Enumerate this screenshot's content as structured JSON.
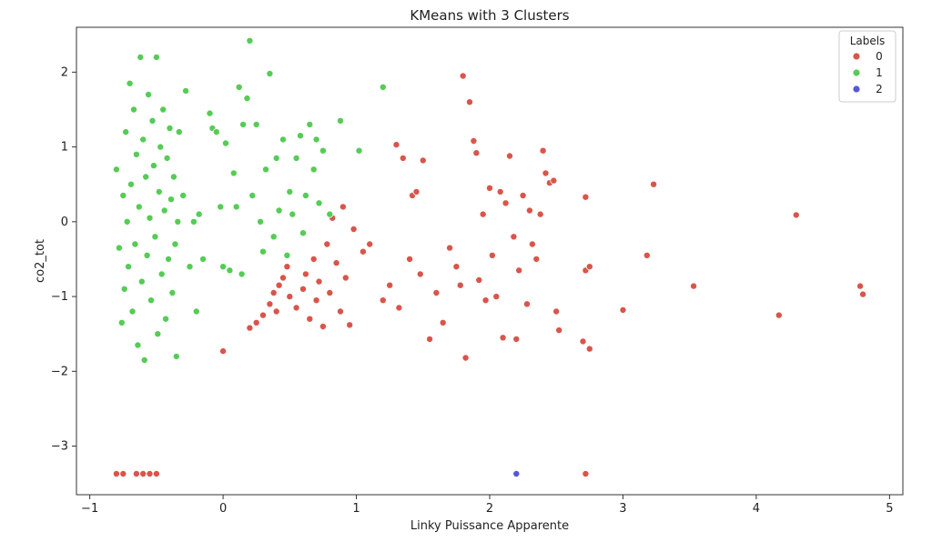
{
  "chart_data": {
    "type": "scatter",
    "title": "KMeans with 3 Clusters",
    "xlabel": "Linky Puissance Apparente",
    "ylabel": "co2_tot",
    "xlim": [
      -1.1,
      5.1
    ],
    "ylim": [
      -3.65,
      2.6
    ],
    "xticks": [
      -1,
      0,
      1,
      2,
      3,
      4,
      5
    ],
    "xtick_labels": [
      "−1",
      "0",
      "1",
      "2",
      "3",
      "4",
      "5"
    ],
    "yticks": [
      -3,
      -2,
      -1,
      0,
      1,
      2
    ],
    "ytick_labels": [
      "−3",
      "−2",
      "−1",
      "0",
      "1",
      "2"
    ],
    "grid": false,
    "legend": {
      "title": "Labels",
      "position": "top-right",
      "labels": [
        "0",
        "1",
        "2"
      ]
    },
    "series": [
      {
        "name": "0",
        "color": "#d9554a",
        "points": [
          [
            0.0,
            -1.73
          ],
          [
            0.2,
            -1.42
          ],
          [
            0.25,
            -1.35
          ],
          [
            0.3,
            -1.25
          ],
          [
            0.35,
            -1.1
          ],
          [
            0.38,
            -0.95
          ],
          [
            0.4,
            -1.2
          ],
          [
            0.42,
            -0.85
          ],
          [
            0.45,
            -0.75
          ],
          [
            0.48,
            -0.6
          ],
          [
            0.5,
            -1.0
          ],
          [
            0.55,
            -1.15
          ],
          [
            0.6,
            -0.9
          ],
          [
            0.62,
            -0.7
          ],
          [
            0.65,
            -1.3
          ],
          [
            0.68,
            -0.5
          ],
          [
            0.7,
            -1.05
          ],
          [
            0.72,
            -0.8
          ],
          [
            0.75,
            -1.4
          ],
          [
            0.78,
            -0.3
          ],
          [
            0.8,
            -0.95
          ],
          [
            0.82,
            0.05
          ],
          [
            0.85,
            -0.55
          ],
          [
            0.88,
            -1.2
          ],
          [
            0.9,
            0.2
          ],
          [
            0.92,
            -0.75
          ],
          [
            0.95,
            -1.38
          ],
          [
            0.98,
            -0.1
          ],
          [
            1.05,
            -0.4
          ],
          [
            1.1,
            -0.3
          ],
          [
            1.2,
            -1.05
          ],
          [
            1.25,
            -0.85
          ],
          [
            1.3,
            1.03
          ],
          [
            1.32,
            -1.15
          ],
          [
            1.35,
            0.85
          ],
          [
            1.4,
            -0.5
          ],
          [
            1.42,
            0.35
          ],
          [
            1.45,
            0.4
          ],
          [
            1.48,
            -0.7
          ],
          [
            1.5,
            0.82
          ],
          [
            1.55,
            -1.57
          ],
          [
            1.6,
            -0.95
          ],
          [
            1.65,
            -1.35
          ],
          [
            1.7,
            -0.35
          ],
          [
            1.75,
            -0.6
          ],
          [
            1.78,
            -0.85
          ],
          [
            1.8,
            1.95
          ],
          [
            1.82,
            -1.82
          ],
          [
            1.85,
            1.6
          ],
          [
            1.88,
            1.08
          ],
          [
            1.9,
            0.92
          ],
          [
            1.92,
            -0.78
          ],
          [
            1.95,
            0.1
          ],
          [
            1.97,
            -1.05
          ],
          [
            2.0,
            0.45
          ],
          [
            2.02,
            -0.45
          ],
          [
            2.05,
            -1.0
          ],
          [
            2.08,
            0.4
          ],
          [
            2.1,
            -1.55
          ],
          [
            2.12,
            0.25
          ],
          [
            2.15,
            0.88
          ],
          [
            2.18,
            -0.2
          ],
          [
            2.2,
            -1.57
          ],
          [
            2.22,
            -0.65
          ],
          [
            2.25,
            0.35
          ],
          [
            2.28,
            -1.1
          ],
          [
            2.3,
            0.15
          ],
          [
            2.32,
            -0.3
          ],
          [
            2.35,
            -0.5
          ],
          [
            2.38,
            0.1
          ],
          [
            2.4,
            0.95
          ],
          [
            2.42,
            0.65
          ],
          [
            2.45,
            0.52
          ],
          [
            2.48,
            0.55
          ],
          [
            2.5,
            -1.2
          ],
          [
            2.52,
            -1.45
          ],
          [
            2.7,
            -1.6
          ],
          [
            2.72,
            0.33
          ],
          [
            2.72,
            -0.65
          ],
          [
            2.75,
            -0.6
          ],
          [
            2.75,
            -1.7
          ],
          [
            3.0,
            -1.18
          ],
          [
            3.18,
            -0.45
          ],
          [
            3.23,
            0.5
          ],
          [
            3.53,
            -0.86
          ],
          [
            4.17,
            -1.25
          ],
          [
            4.3,
            0.09
          ],
          [
            4.78,
            -0.86
          ],
          [
            4.8,
            -0.97
          ],
          [
            -0.8,
            -3.37
          ],
          [
            -0.75,
            -3.37
          ],
          [
            -0.65,
            -3.37
          ],
          [
            -0.6,
            -3.37
          ],
          [
            -0.55,
            -3.37
          ],
          [
            -0.5,
            -3.37
          ],
          [
            2.72,
            -3.37
          ]
        ]
      },
      {
        "name": "1",
        "color": "#55cc55",
        "points": [
          [
            -0.8,
            0.7
          ],
          [
            -0.78,
            -0.35
          ],
          [
            -0.76,
            -1.35
          ],
          [
            -0.75,
            0.35
          ],
          [
            -0.74,
            -0.9
          ],
          [
            -0.73,
            1.2
          ],
          [
            -0.72,
            0.0
          ],
          [
            -0.71,
            -0.6
          ],
          [
            -0.7,
            1.85
          ],
          [
            -0.69,
            0.5
          ],
          [
            -0.68,
            -1.2
          ],
          [
            -0.67,
            1.5
          ],
          [
            -0.66,
            -0.3
          ],
          [
            -0.65,
            0.9
          ],
          [
            -0.64,
            -1.65
          ],
          [
            -0.63,
            0.2
          ],
          [
            -0.62,
            2.2
          ],
          [
            -0.61,
            -0.8
          ],
          [
            -0.6,
            1.1
          ],
          [
            -0.59,
            -1.85
          ],
          [
            -0.58,
            0.6
          ],
          [
            -0.57,
            -0.45
          ],
          [
            -0.56,
            1.7
          ],
          [
            -0.55,
            0.05
          ],
          [
            -0.54,
            -1.05
          ],
          [
            -0.53,
            1.35
          ],
          [
            -0.52,
            0.75
          ],
          [
            -0.51,
            -0.2
          ],
          [
            -0.5,
            2.2
          ],
          [
            -0.49,
            -1.5
          ],
          [
            -0.48,
            0.4
          ],
          [
            -0.47,
            1.0
          ],
          [
            -0.46,
            -0.7
          ],
          [
            -0.45,
            1.5
          ],
          [
            -0.44,
            0.15
          ],
          [
            -0.43,
            -1.3
          ],
          [
            -0.42,
            0.85
          ],
          [
            -0.41,
            -0.5
          ],
          [
            -0.4,
            1.25
          ],
          [
            -0.39,
            0.3
          ],
          [
            -0.38,
            -0.95
          ],
          [
            -0.37,
            0.6
          ],
          [
            -0.36,
            -0.3
          ],
          [
            -0.35,
            -1.8
          ],
          [
            -0.34,
            0.0
          ],
          [
            -0.33,
            1.2
          ],
          [
            -0.3,
            0.35
          ],
          [
            -0.28,
            1.75
          ],
          [
            -0.25,
            -0.6
          ],
          [
            -0.22,
            0.0
          ],
          [
            -0.2,
            -1.2
          ],
          [
            -0.18,
            0.1
          ],
          [
            -0.15,
            -0.5
          ],
          [
            -0.1,
            1.45
          ],
          [
            -0.08,
            1.25
          ],
          [
            -0.05,
            1.2
          ],
          [
            -0.02,
            0.2
          ],
          [
            0.0,
            -0.6
          ],
          [
            0.02,
            1.05
          ],
          [
            0.05,
            -0.65
          ],
          [
            0.08,
            0.65
          ],
          [
            0.1,
            0.2
          ],
          [
            0.12,
            1.8
          ],
          [
            0.14,
            -0.7
          ],
          [
            0.15,
            1.3
          ],
          [
            0.18,
            1.65
          ],
          [
            0.2,
            2.42
          ],
          [
            0.22,
            0.35
          ],
          [
            0.25,
            1.3
          ],
          [
            0.28,
            0.0
          ],
          [
            0.3,
            -0.4
          ],
          [
            0.32,
            0.7
          ],
          [
            0.35,
            1.98
          ],
          [
            0.38,
            -0.2
          ],
          [
            0.4,
            0.85
          ],
          [
            0.42,
            0.15
          ],
          [
            0.45,
            1.1
          ],
          [
            0.48,
            -0.45
          ],
          [
            0.5,
            0.4
          ],
          [
            0.52,
            0.1
          ],
          [
            0.55,
            0.85
          ],
          [
            0.58,
            1.15
          ],
          [
            0.6,
            -0.15
          ],
          [
            0.62,
            0.35
          ],
          [
            0.65,
            1.3
          ],
          [
            0.68,
            0.7
          ],
          [
            0.7,
            1.1
          ],
          [
            0.72,
            0.25
          ],
          [
            0.75,
            0.95
          ],
          [
            0.8,
            0.1
          ],
          [
            0.88,
            1.35
          ],
          [
            1.02,
            0.95
          ],
          [
            1.2,
            1.8
          ]
        ]
      },
      {
        "name": "2",
        "color": "#5555dd",
        "points": [
          [
            2.2,
            -3.37
          ]
        ]
      }
    ]
  }
}
